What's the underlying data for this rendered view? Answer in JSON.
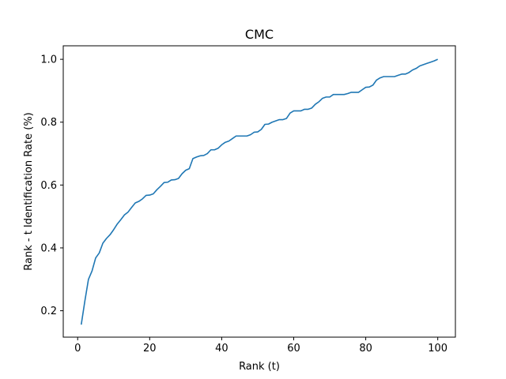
{
  "chart_data": {
    "type": "line",
    "title": "CMC",
    "xlabel": "Rank (t)",
    "ylabel": "Rank - t Identification Rate (%)",
    "xlim": [
      -4.0,
      104.9
    ],
    "ylim": [
      0.116,
      1.043
    ],
    "xticks": [
      0,
      20,
      40,
      60,
      80,
      100
    ],
    "yticks": [
      0.2,
      0.4,
      0.6,
      0.8,
      1.0
    ],
    "xtick_labels": [
      "0",
      "20",
      "40",
      "60",
      "80",
      "100"
    ],
    "ytick_labels": [
      "0.2",
      "0.4",
      "0.6",
      "0.8",
      "1.0"
    ],
    "grid": false,
    "line_color": "#1f77b4",
    "series": [
      {
        "x": [
          1,
          2,
          3,
          4,
          5,
          6,
          7,
          8,
          9,
          10,
          11,
          12,
          13,
          14,
          15,
          16,
          17,
          18,
          19,
          20,
          21,
          22,
          23,
          24,
          25,
          26,
          27,
          28,
          29,
          30,
          31,
          32,
          33,
          34,
          35,
          36,
          37,
          38,
          39,
          40,
          41,
          42,
          43,
          44,
          45,
          46,
          47,
          48,
          49,
          50,
          51,
          52,
          53,
          54,
          55,
          56,
          57,
          58,
          59,
          60,
          61,
          62,
          63,
          64,
          65,
          66,
          67,
          68,
          69,
          70,
          71,
          72,
          73,
          74,
          75,
          76,
          77,
          78,
          79,
          80,
          81,
          82,
          83,
          84,
          85,
          86,
          87,
          88,
          89,
          90,
          91,
          92,
          93,
          94,
          95,
          96,
          97,
          98,
          99,
          100
        ],
        "y": [
          0.156,
          0.231,
          0.3,
          0.327,
          0.368,
          0.384,
          0.415,
          0.43,
          0.442,
          0.458,
          0.476,
          0.49,
          0.505,
          0.514,
          0.529,
          0.543,
          0.548,
          0.556,
          0.567,
          0.568,
          0.572,
          0.585,
          0.596,
          0.608,
          0.609,
          0.616,
          0.617,
          0.621,
          0.636,
          0.647,
          0.652,
          0.684,
          0.689,
          0.693,
          0.694,
          0.7,
          0.712,
          0.712,
          0.717,
          0.728,
          0.736,
          0.74,
          0.748,
          0.756,
          0.756,
          0.756,
          0.756,
          0.76,
          0.768,
          0.769,
          0.777,
          0.793,
          0.794,
          0.8,
          0.804,
          0.808,
          0.808,
          0.812,
          0.829,
          0.836,
          0.836,
          0.836,
          0.841,
          0.841,
          0.845,
          0.857,
          0.865,
          0.876,
          0.88,
          0.88,
          0.888,
          0.888,
          0.888,
          0.888,
          0.891,
          0.895,
          0.895,
          0.895,
          0.903,
          0.911,
          0.912,
          0.918,
          0.934,
          0.941,
          0.945,
          0.945,
          0.945,
          0.945,
          0.949,
          0.953,
          0.953,
          0.958,
          0.966,
          0.971,
          0.979,
          0.983,
          0.987,
          0.991,
          0.995,
          1.0
        ]
      }
    ]
  }
}
